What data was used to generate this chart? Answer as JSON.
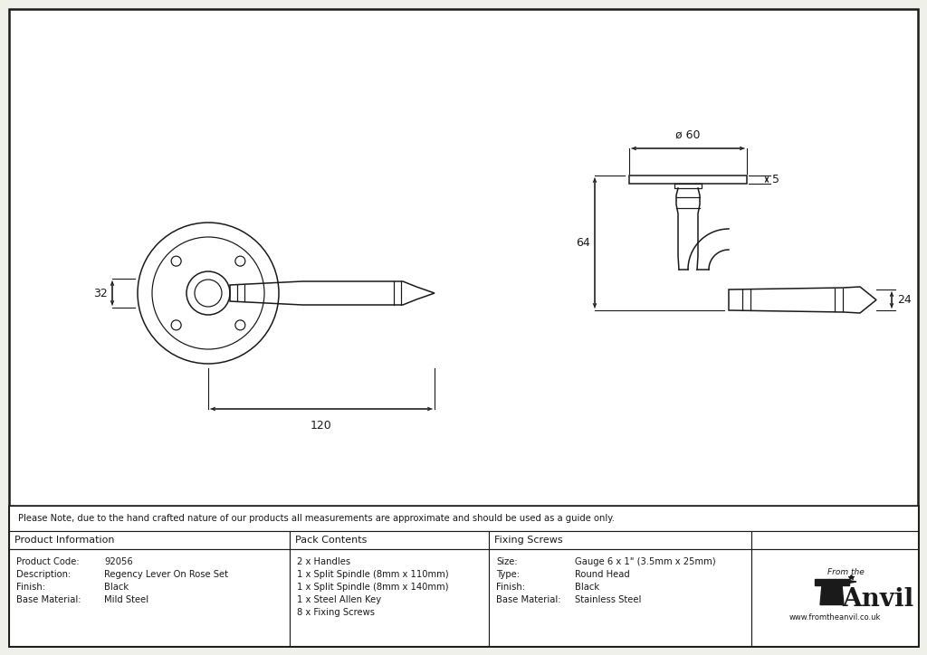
{
  "bg_color": "#f0f0eb",
  "white": "#ffffff",
  "line_color": "#1a1a1a",
  "note_text": "Please Note, due to the hand crafted nature of our products all measurements are approximate and should be used as a guide only.",
  "table": {
    "product_info_label": "Product Information",
    "pack_contents_label": "Pack Contents",
    "fixing_screws_label": "Fixing Screws",
    "product_code_label": "Product Code:",
    "product_code": "92056",
    "description_label": "Description:",
    "description": "Regency Lever On Rose Set",
    "finish_label": "Finish:",
    "finish": "Black",
    "base_material_label": "Base Material:",
    "base_material": "Mild Steel",
    "pack_items": [
      "2 x Handles",
      "1 x Split Spindle (8mm x 110mm)",
      "1 x Split Spindle (8mm x 140mm)",
      "1 x Steel Allen Key",
      "8 x Fixing Screws"
    ],
    "size_label": "Size:",
    "size_value": "Gauge 6 x 1\" (3.5mm x 25mm)",
    "type_label": "Type:",
    "type_value": "Round Head",
    "finish2_label": "Finish:",
    "finish2_value": "Black",
    "base_material2_label": "Base Material:",
    "base_material2_value": "Stainless Steel",
    "anvil_url": "www.fromtheanvil.co.uk"
  },
  "dim_32": "32",
  "dim_120": "120",
  "dim_60": "ø 60",
  "dim_5": "5",
  "dim_64": "64",
  "dim_24": "24"
}
